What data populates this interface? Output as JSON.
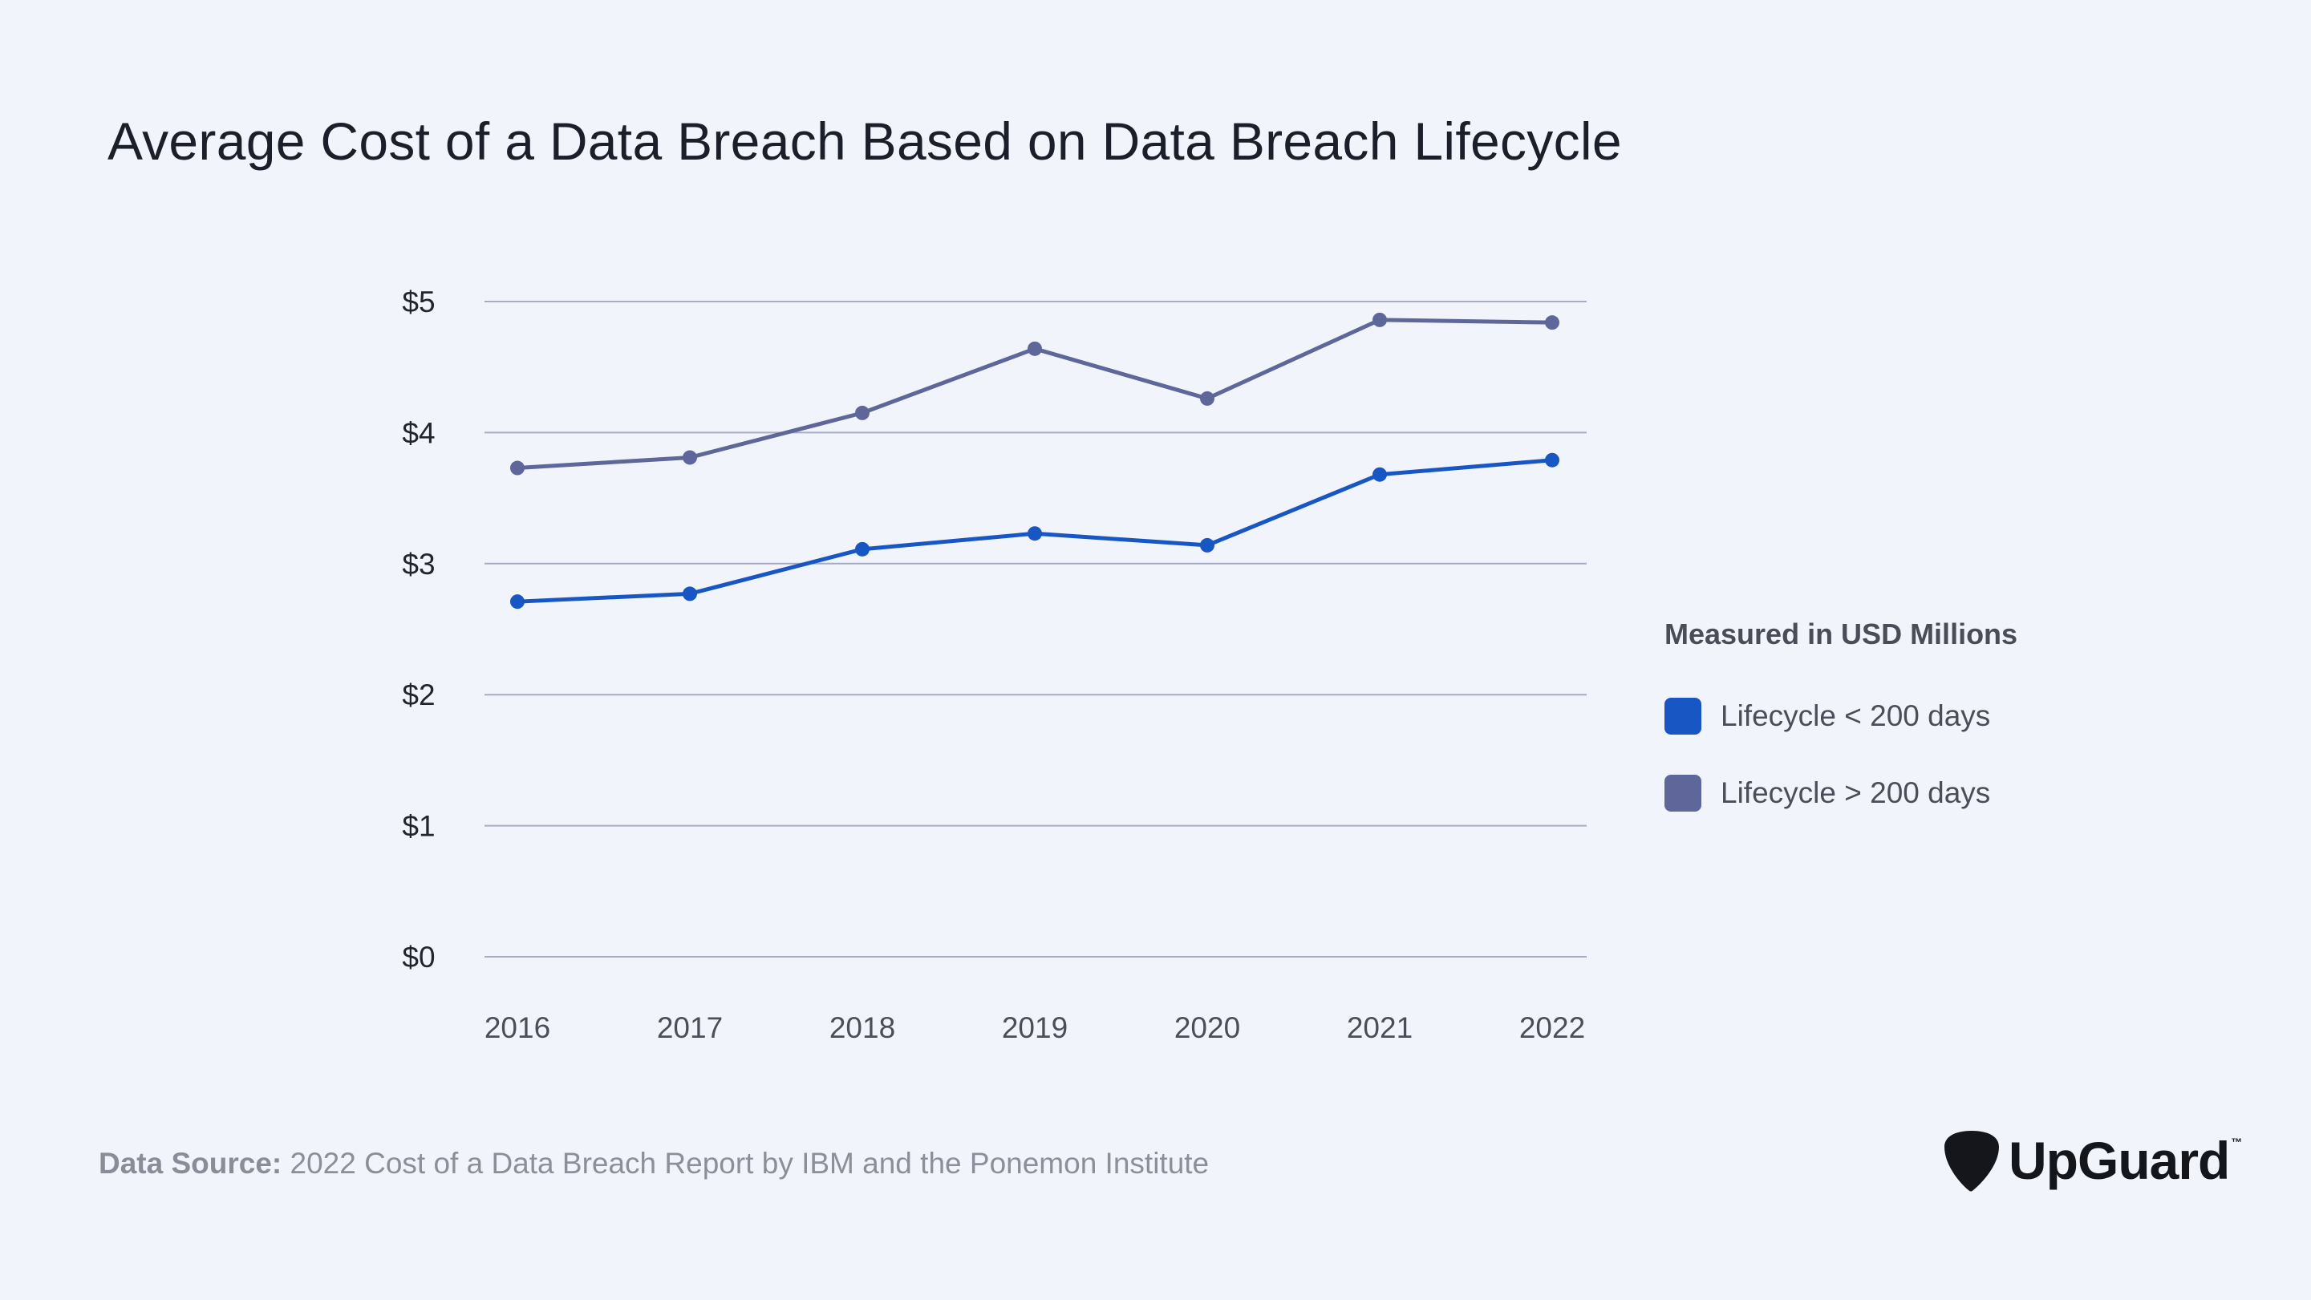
{
  "title": "Average Cost of a Data Breach Based on Data Breach Lifecycle",
  "colors": {
    "background": "#f1f5fb",
    "gridline": "#a8acc2",
    "series_short": "#1857c3",
    "series_long": "#5f6699"
  },
  "chart_data": {
    "type": "line",
    "title": "Average Cost of a Data Breach Based on Data Breach Lifecycle",
    "xlabel": "",
    "ylabel": "",
    "x": [
      "2016",
      "2017",
      "2018",
      "2019",
      "2020",
      "2021",
      "2022"
    ],
    "ylim": [
      0,
      5
    ],
    "yticks": [
      0,
      1,
      2,
      3,
      4,
      5
    ],
    "ytick_labels": [
      "$0",
      "$1",
      "$2",
      "$3",
      "$4",
      "$5"
    ],
    "grid": true,
    "series": [
      {
        "name": "Lifecycle < 200 days",
        "color": "#1857c3",
        "values": [
          2.71,
          2.77,
          3.11,
          3.23,
          3.14,
          3.68,
          3.79
        ]
      },
      {
        "name": "Lifecycle > 200 days",
        "color": "#5f6699",
        "values": [
          3.73,
          3.81,
          4.15,
          4.64,
          4.26,
          4.86,
          4.84
        ]
      }
    ]
  },
  "legend": {
    "heading": "Measured in USD Millions",
    "items": [
      {
        "label": "Lifecycle < 200 days",
        "color": "#1857c3"
      },
      {
        "label": "Lifecycle > 200 days",
        "color": "#5f6699"
      }
    ]
  },
  "source": {
    "label": "Data Source:",
    "text": "2022 Cost of a Data Breach Report by IBM and the Ponemon Institute"
  },
  "brand": {
    "name": "UpGuard",
    "tm": "™",
    "logo_icon": "guitar-pick-icon"
  }
}
